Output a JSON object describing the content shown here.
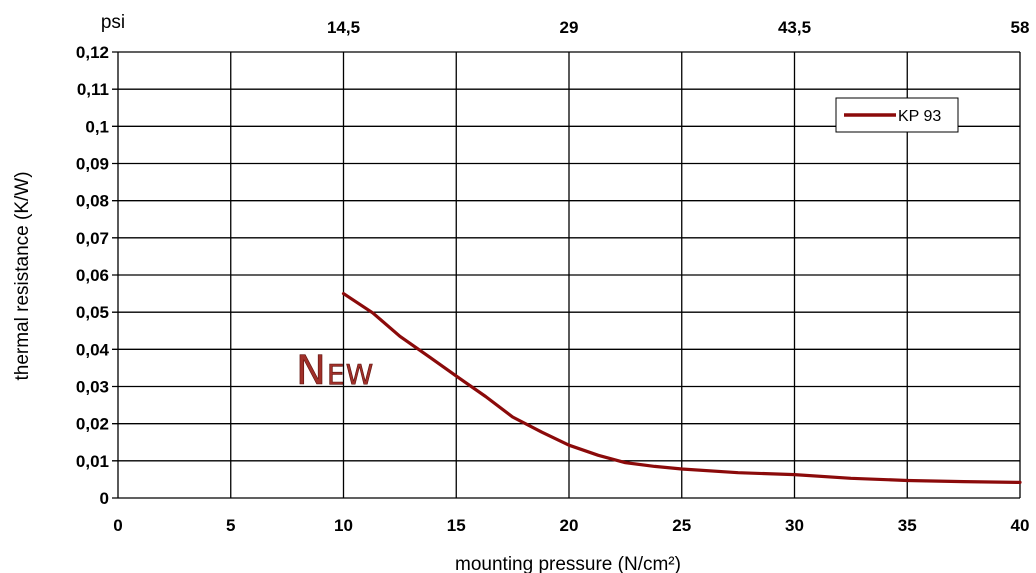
{
  "chart_data": {
    "type": "line",
    "xlabel": "mounting pressure (N/cm²)",
    "ylabel": "thermal resistance (K/W)",
    "xlim": [
      0,
      40
    ],
    "ylim": [
      0,
      0.12
    ],
    "x_ticks": [
      "0",
      "5",
      "10",
      "15",
      "20",
      "25",
      "30",
      "35",
      "40"
    ],
    "y_ticks": [
      "0",
      "0,01",
      "0,02",
      "0,03",
      "0,04",
      "0,05",
      "0,06",
      "0,07",
      "0,08",
      "0,09",
      "0,1",
      "0,11",
      "0,12"
    ],
    "secondary_x": {
      "unit": "psi",
      "ticks": [
        {
          "x": 10,
          "label": "14,5"
        },
        {
          "x": 20,
          "label": "29"
        },
        {
          "x": 30,
          "label": "43,5"
        },
        {
          "x": 40,
          "label": "58"
        }
      ]
    },
    "grid": true,
    "legend_position": "top-right",
    "series": [
      {
        "name": "KP 93",
        "color": "#8b0a0a",
        "x": [
          10,
          11.3,
          12.5,
          13.8,
          15,
          16.3,
          17.5,
          18.8,
          20,
          21.3,
          22.5,
          23.8,
          25,
          27.5,
          30,
          32.5,
          35,
          37.5,
          40
        ],
        "y": [
          0.055,
          0.0498,
          0.0435,
          0.038,
          0.0328,
          0.0273,
          0.0218,
          0.0177,
          0.0142,
          0.0115,
          0.0095,
          0.0085,
          0.0078,
          0.0068,
          0.0063,
          0.0053,
          0.0047,
          0.0044,
          0.0042
        ]
      }
    ],
    "annotations": [
      {
        "text": "New",
        "color": "#a0302a"
      }
    ]
  }
}
